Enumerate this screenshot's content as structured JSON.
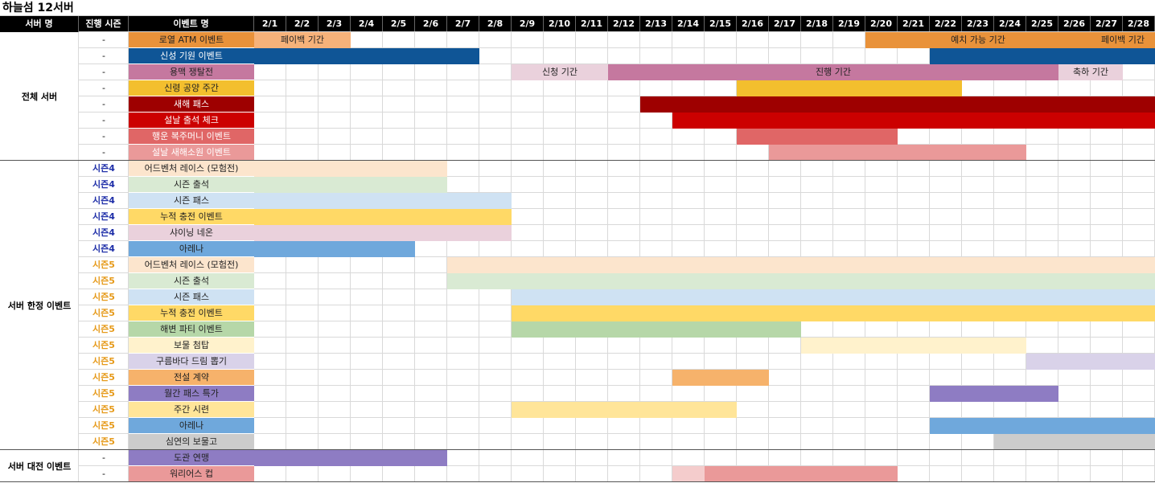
{
  "title": "하늘섬 12서버",
  "headers": {
    "server": "서버 명",
    "season": "진행 시즌",
    "event": "이벤트 명"
  },
  "dates": [
    "2/1",
    "2/2",
    "2/3",
    "2/4",
    "2/5",
    "2/6",
    "2/7",
    "2/8",
    "2/9",
    "2/10",
    "2/11",
    "2/12",
    "2/13",
    "2/14",
    "2/15",
    "2/16",
    "2/17",
    "2/18",
    "2/19",
    "2/20",
    "2/21",
    "2/22",
    "2/23",
    "2/24",
    "2/25",
    "2/26",
    "2/27",
    "2/28"
  ],
  "groups": [
    {
      "label": "전체 서버",
      "start_row": 0,
      "count": 8
    },
    {
      "label": "서버 한정 이벤트",
      "start_row": 8,
      "count": 18
    },
    {
      "label": "서버 대전 이벤트",
      "start_row": 26,
      "count": 2
    }
  ],
  "colors": {
    "season4": "#1f2fa8",
    "season5": "#e69a1a",
    "dash": "#000000"
  },
  "rows": [
    {
      "season": "-",
      "season_kind": "dash",
      "event": "로열 ATM 이벤트",
      "color": "#e9923a",
      "bars": [
        {
          "from": 1,
          "to": 3,
          "color": "#f6b27a",
          "label": "페이백 기간"
        },
        {
          "from": 20,
          "to": 26,
          "color": "#e9923a",
          "label": "예치 가능 기간"
        },
        {
          "from": 27,
          "to": 28,
          "color": "#e9923a",
          "label": "페이백 기간"
        }
      ]
    },
    {
      "season": "-",
      "season_kind": "dash",
      "event": "신성 기원 이벤트",
      "color": "#0f5596",
      "light": true,
      "bars": [
        {
          "from": 1,
          "to": 7,
          "color": "#0f5596",
          "label": ""
        },
        {
          "from": 22,
          "to": 28,
          "color": "#0f5596",
          "label": ""
        }
      ]
    },
    {
      "season": "-",
      "season_kind": "dash",
      "event": "용맥 쟁탈전",
      "color": "#c5789f",
      "bars": [
        {
          "from": 9,
          "to": 11,
          "color": "#ead1dc",
          "label": "신청 기간"
        },
        {
          "from": 12,
          "to": 25,
          "color": "#c5789f",
          "label": "진행 기간"
        },
        {
          "from": 26,
          "to": 27,
          "color": "#ead1dc",
          "label": "축하 기간"
        }
      ]
    },
    {
      "season": "-",
      "season_kind": "dash",
      "event": "신령 공양 주간",
      "color": "#f3bf2e",
      "bars": [
        {
          "from": 16,
          "to": 22,
          "color": "#f3bf2e",
          "label": ""
        }
      ]
    },
    {
      "season": "-",
      "season_kind": "dash",
      "event": "새해 패스",
      "color": "#9e0000",
      "light": true,
      "bars": [
        {
          "from": 13,
          "to": 28,
          "color": "#9e0000",
          "label": ""
        }
      ]
    },
    {
      "season": "-",
      "season_kind": "dash",
      "event": "설날 출석 체크",
      "color": "#cc0000",
      "light": true,
      "bars": [
        {
          "from": 14,
          "to": 28,
          "color": "#cc0000",
          "label": ""
        }
      ]
    },
    {
      "season": "-",
      "season_kind": "dash",
      "event": "행운 복주머니 이벤트",
      "color": "#e06666",
      "light": true,
      "bars": [
        {
          "from": 16,
          "to": 20,
          "color": "#e06666",
          "label": ""
        }
      ]
    },
    {
      "season": "-",
      "season_kind": "dash",
      "event": "설날 새해소원 이벤트",
      "color": "#ea9999",
      "light": true,
      "bars": [
        {
          "from": 17,
          "to": 24,
          "color": "#ea9999",
          "label": ""
        }
      ]
    },
    {
      "season": "시즌4",
      "season_kind": "season4",
      "event": "어드벤처 레이스 (모험전)",
      "color": "#fce5cd",
      "bars": [
        {
          "from": 1,
          "to": 6,
          "color": "#fce5cd",
          "label": ""
        }
      ]
    },
    {
      "season": "시즌4",
      "season_kind": "season4",
      "event": "시즌 출석",
      "color": "#d9ead3",
      "bars": [
        {
          "from": 1,
          "to": 6,
          "color": "#d9ead3",
          "label": ""
        }
      ]
    },
    {
      "season": "시즌4",
      "season_kind": "season4",
      "event": "시즌 패스",
      "color": "#cfe2f3",
      "bars": [
        {
          "from": 1,
          "to": 8,
          "color": "#cfe2f3",
          "label": ""
        }
      ]
    },
    {
      "season": "시즌4",
      "season_kind": "season4",
      "event": "누적 충전 이벤트",
      "color": "#ffd966",
      "bars": [
        {
          "from": 1,
          "to": 8,
          "color": "#ffd966",
          "label": ""
        }
      ]
    },
    {
      "season": "시즌4",
      "season_kind": "season4",
      "event": "샤이닝 네온",
      "color": "#ead1dc",
      "bars": [
        {
          "from": 1,
          "to": 8,
          "color": "#ead1dc",
          "label": ""
        }
      ]
    },
    {
      "season": "시즌4",
      "season_kind": "season4",
      "event": "아레나",
      "color": "#6fa8dc",
      "bars": [
        {
          "from": 1,
          "to": 5,
          "color": "#6fa8dc",
          "label": ""
        }
      ]
    },
    {
      "season": "시즌5",
      "season_kind": "season5",
      "event": "어드벤처 레이스 (모험전)",
      "color": "#fce5cd",
      "bars": [
        {
          "from": 7,
          "to": 28,
          "color": "#fce5cd",
          "label": ""
        }
      ]
    },
    {
      "season": "시즌5",
      "season_kind": "season5",
      "event": "시즌 출석",
      "color": "#d9ead3",
      "bars": [
        {
          "from": 7,
          "to": 28,
          "color": "#d9ead3",
          "label": ""
        }
      ]
    },
    {
      "season": "시즌5",
      "season_kind": "season5",
      "event": "시즌 패스",
      "color": "#cfe2f3",
      "bars": [
        {
          "from": 9,
          "to": 28,
          "color": "#cfe2f3",
          "label": ""
        }
      ]
    },
    {
      "season": "시즌5",
      "season_kind": "season5",
      "event": "누적 충전 이벤트",
      "color": "#ffd966",
      "bars": [
        {
          "from": 9,
          "to": 28,
          "color": "#ffd966",
          "label": ""
        }
      ]
    },
    {
      "season": "시즌5",
      "season_kind": "season5",
      "event": "해변 파티 이벤트",
      "color": "#b6d7a8",
      "bars": [
        {
          "from": 9,
          "to": 17,
          "color": "#b6d7a8",
          "label": ""
        }
      ]
    },
    {
      "season": "시즌5",
      "season_kind": "season5",
      "event": "보물 첨탑",
      "color": "#fff2cc",
      "bars": [
        {
          "from": 18,
          "to": 24,
          "color": "#fff2cc",
          "label": ""
        }
      ]
    },
    {
      "season": "시즌5",
      "season_kind": "season5",
      "event": "구름바다 드림 뽑기",
      "color": "#d9d2e9",
      "bars": [
        {
          "from": 25,
          "to": 28,
          "color": "#d9d2e9",
          "label": ""
        }
      ]
    },
    {
      "season": "시즌5",
      "season_kind": "season5",
      "event": "전설 계약",
      "color": "#f6b26b",
      "bars": [
        {
          "from": 14,
          "to": 16,
          "color": "#f6b26b",
          "label": ""
        }
      ]
    },
    {
      "season": "시즌5",
      "season_kind": "season5",
      "event": "월간 패스 특가",
      "color": "#8e7cc3",
      "bars": [
        {
          "from": 22,
          "to": 25,
          "color": "#8e7cc3",
          "label": ""
        }
      ]
    },
    {
      "season": "시즌5",
      "season_kind": "season5",
      "event": "주간 시련",
      "color": "#ffe599",
      "bars": [
        {
          "from": 9,
          "to": 15,
          "color": "#ffe599",
          "label": ""
        }
      ]
    },
    {
      "season": "시즌5",
      "season_kind": "season5",
      "event": "아레나",
      "color": "#6fa8dc",
      "bars": [
        {
          "from": 22,
          "to": 28,
          "color": "#6fa8dc",
          "label": ""
        }
      ]
    },
    {
      "season": "시즌5",
      "season_kind": "season5",
      "event": "심연의 보물고",
      "color": "#cccccc",
      "bars": [
        {
          "from": 24,
          "to": 28,
          "color": "#cccccc",
          "label": ""
        }
      ]
    },
    {
      "season": "-",
      "season_kind": "dash",
      "event": "도관 연맹",
      "color": "#8e7cc3",
      "bars": [
        {
          "from": 1,
          "to": 6,
          "color": "#8e7cc3",
          "label": ""
        }
      ]
    },
    {
      "season": "-",
      "season_kind": "dash",
      "event": "워리어스 컵",
      "color": "#ea9999",
      "bars": [
        {
          "from": 14,
          "to": 14,
          "color": "#f4cccc",
          "label": ""
        },
        {
          "from": 15,
          "to": 20,
          "color": "#ea9999",
          "label": ""
        }
      ]
    }
  ]
}
